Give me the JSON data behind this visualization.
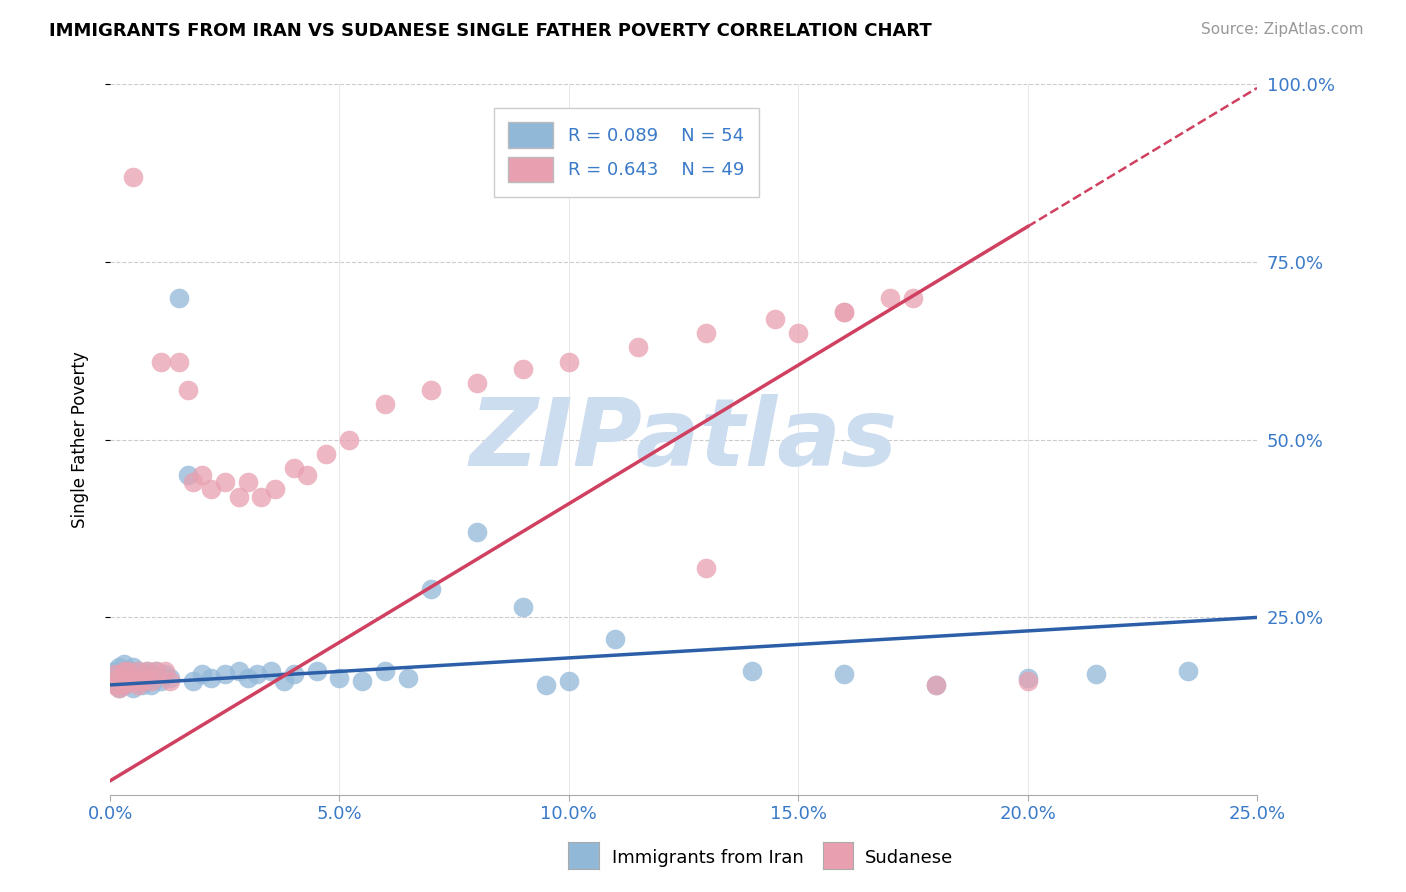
{
  "title": "IMMIGRANTS FROM IRAN VS SUDANESE SINGLE FATHER POVERTY CORRELATION CHART",
  "source": "Source: ZipAtlas.com",
  "ylabel": "Single Father Poverty",
  "xlim": [
    0.0,
    0.25
  ],
  "ylim": [
    0.0,
    1.0
  ],
  "xtick_labels": [
    "0.0%",
    "5.0%",
    "10.0%",
    "15.0%",
    "20.0%",
    "25.0%"
  ],
  "xtick_values": [
    0.0,
    0.05,
    0.1,
    0.15,
    0.2,
    0.25
  ],
  "ytick_labels": [
    "100.0%",
    "75.0%",
    "50.0%",
    "25.0%"
  ],
  "ytick_values": [
    1.0,
    0.75,
    0.5,
    0.25
  ],
  "legend_r_blue": "R = 0.089",
  "legend_n_blue": "N = 54",
  "legend_r_pink": "R = 0.643",
  "legend_n_pink": "N = 49",
  "color_blue": "#92b8d8",
  "color_pink": "#e8a0b0",
  "color_trendline_blue": "#2c5fa8",
  "color_trendline_pink": "#d04060",
  "watermark": "ZIPatlas",
  "watermark_color": "#ccddf0",
  "blue_intercept": 0.155,
  "blue_slope": 0.38,
  "pink_intercept": 0.02,
  "pink_slope": 3.9,
  "blue_x": [
    0.001,
    0.001,
    0.002,
    0.002,
    0.003,
    0.003,
    0.003,
    0.004,
    0.004,
    0.005,
    0.005,
    0.005,
    0.006,
    0.006,
    0.007,
    0.007,
    0.008,
    0.008,
    0.009,
    0.009,
    0.01,
    0.01,
    0.011,
    0.012,
    0.013,
    0.015,
    0.017,
    0.018,
    0.02,
    0.022,
    0.025,
    0.028,
    0.03,
    0.032,
    0.035,
    0.038,
    0.04,
    0.045,
    0.05,
    0.055,
    0.06,
    0.065,
    0.07,
    0.08,
    0.09,
    0.095,
    0.1,
    0.11,
    0.14,
    0.16,
    0.18,
    0.2,
    0.215,
    0.235
  ],
  "blue_y": [
    0.16,
    0.175,
    0.15,
    0.18,
    0.155,
    0.17,
    0.185,
    0.16,
    0.175,
    0.15,
    0.165,
    0.18,
    0.16,
    0.175,
    0.155,
    0.17,
    0.16,
    0.175,
    0.155,
    0.17,
    0.165,
    0.175,
    0.16,
    0.17,
    0.165,
    0.7,
    0.45,
    0.16,
    0.17,
    0.165,
    0.17,
    0.175,
    0.165,
    0.17,
    0.175,
    0.16,
    0.17,
    0.175,
    0.165,
    0.16,
    0.175,
    0.165,
    0.29,
    0.37,
    0.265,
    0.155,
    0.16,
    0.22,
    0.175,
    0.17,
    0.155,
    0.165,
    0.17,
    0.175
  ],
  "pink_x": [
    0.001,
    0.001,
    0.002,
    0.002,
    0.003,
    0.003,
    0.004,
    0.004,
    0.005,
    0.005,
    0.006,
    0.006,
    0.007,
    0.008,
    0.009,
    0.01,
    0.011,
    0.012,
    0.013,
    0.015,
    0.017,
    0.018,
    0.02,
    0.022,
    0.025,
    0.028,
    0.03,
    0.033,
    0.036,
    0.04,
    0.043,
    0.047,
    0.052,
    0.06,
    0.07,
    0.08,
    0.09,
    0.1,
    0.115,
    0.13,
    0.145,
    0.16,
    0.175,
    0.13,
    0.15,
    0.16,
    0.17,
    0.18,
    0.2
  ],
  "pink_y": [
    0.155,
    0.17,
    0.15,
    0.165,
    0.155,
    0.175,
    0.16,
    0.175,
    0.16,
    0.87,
    0.155,
    0.175,
    0.16,
    0.175,
    0.16,
    0.175,
    0.61,
    0.175,
    0.16,
    0.61,
    0.57,
    0.44,
    0.45,
    0.43,
    0.44,
    0.42,
    0.44,
    0.42,
    0.43,
    0.46,
    0.45,
    0.48,
    0.5,
    0.55,
    0.57,
    0.58,
    0.6,
    0.61,
    0.63,
    0.65,
    0.67,
    0.68,
    0.7,
    0.32,
    0.65,
    0.68,
    0.7,
    0.155,
    0.16
  ]
}
